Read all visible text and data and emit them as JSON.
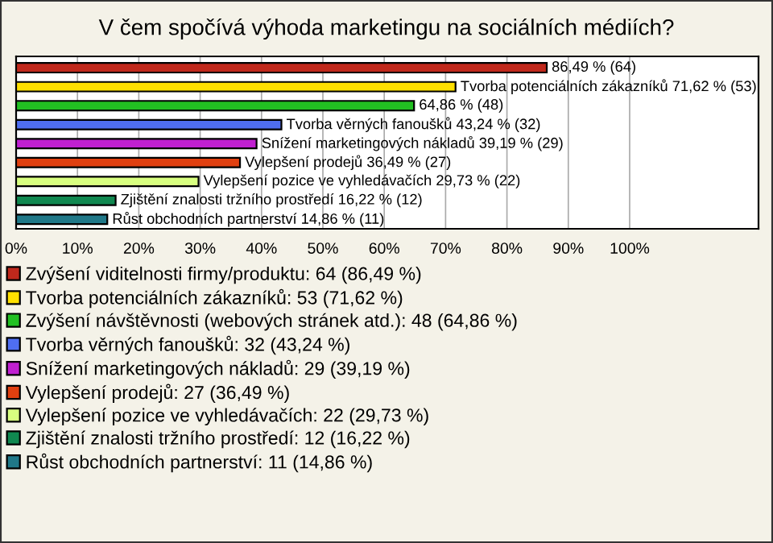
{
  "chart_data": {
    "type": "bar",
    "orientation": "horizontal",
    "stacked": true,
    "title": "V čem spočívá výhoda marketingu na sociálních médiích?",
    "categories": [
      null,
      null,
      null,
      null,
      null,
      null,
      null,
      null,
      null
    ],
    "series": [
      {
        "name": "Zvýšení viditelnosti firmy/produktu: 64 (86,49 %)",
        "color": "#c0281c",
        "values": [
          86.49,
          null,
          null,
          null,
          null,
          null,
          null,
          null,
          null
        ],
        "value_labels": [
          "86,49 % (64)",
          null,
          null,
          null,
          null,
          null,
          null,
          null,
          null
        ]
      },
      {
        "name": "Tvorba potenciálních zákazníků: 53 (71,62 %)",
        "color": "#ffe000",
        "values": [
          null,
          71.62,
          null,
          null,
          null,
          null,
          null,
          null,
          null
        ],
        "value_labels": [
          null,
          "Tvorba potenciálních zákazníků 71,62 % (53)",
          null,
          null,
          null,
          null,
          null,
          null,
          null
        ]
      },
      {
        "name": "Zvýšení návštěvnosti (webových stránek atd.): 48 (64,86 %)",
        "color": "#22c022",
        "values": [
          null,
          null,
          64.86,
          null,
          null,
          null,
          null,
          null,
          null
        ],
        "value_labels": [
          null,
          null,
          "64,86 % (48)",
          null,
          null,
          null,
          null,
          null,
          null
        ]
      },
      {
        "name": "Tvorba věrných fanoušků: 32 (43,24 %)",
        "color": "#4f6ef0",
        "values": [
          null,
          null,
          null,
          43.24,
          null,
          null,
          null,
          null,
          null
        ],
        "value_labels": [
          null,
          null,
          null,
          "Tvorba věrných fanoušků 43,24 % (32)",
          null,
          null,
          null,
          null,
          null
        ]
      },
      {
        "name": "Snížení marketingových nákladů: 29 (39,19 %)",
        "color": "#c020d0",
        "values": [
          null,
          null,
          null,
          null,
          39.19,
          null,
          null,
          null,
          null
        ],
        "value_labels": [
          null,
          null,
          null,
          null,
          "Snížení marketingových nákladů 39,19 % (29)",
          null,
          null,
          null,
          null
        ]
      },
      {
        "name": "Vylepšení prodejů: 27 (36,49 %)",
        "color": "#e04010",
        "values": [
          null,
          null,
          null,
          null,
          null,
          36.49,
          null,
          null,
          null
        ],
        "value_labels": [
          null,
          null,
          null,
          null,
          null,
          "Vylepšení prodejů 36,49 % (27)",
          null,
          null,
          null
        ]
      },
      {
        "name": "Vylepšení pozice ve vyhledávačích: 22 (29,73 %)",
        "color": "#d8ff80",
        "values": [
          null,
          null,
          null,
          null,
          null,
          null,
          29.73,
          null,
          null
        ],
        "value_labels": [
          null,
          null,
          null,
          null,
          null,
          null,
          "Vylepšení pozice ve vyhledávačích 29,73 % (22)",
          null,
          null
        ]
      },
      {
        "name": "Zjištění znalosti tržního prostředí: 12 (16,22 %)",
        "color": "#108850",
        "values": [
          null,
          null,
          null,
          null,
          null,
          null,
          null,
          16.22,
          null
        ],
        "value_labels": [
          null,
          null,
          null,
          null,
          null,
          null,
          null,
          "Zjištění znalosti tržního prostředí 16,22 % (12)",
          null
        ]
      },
      {
        "name": "Růst obchodních partnerství: 11 (14,86 %)",
        "color": "#207888",
        "values": [
          null,
          null,
          null,
          null,
          null,
          null,
          null,
          null,
          14.86
        ],
        "value_labels": [
          null,
          null,
          null,
          null,
          null,
          null,
          null,
          null,
          "Růst obchodních partnerství 14,86 % (11)"
        ]
      }
    ],
    "xlim": [
      0,
      121
    ],
    "xticks": [
      {
        "value": 0,
        "label": "0%"
      },
      {
        "value": 10,
        "label": "10%"
      },
      {
        "value": 20,
        "label": "20%"
      },
      {
        "value": 30,
        "label": "30%"
      },
      {
        "value": 40,
        "label": "40%"
      },
      {
        "value": 50,
        "label": "50%"
      },
      {
        "value": 60,
        "label": "60%"
      },
      {
        "value": 70,
        "label": "70%"
      },
      {
        "value": 80,
        "label": "80%"
      },
      {
        "value": 90,
        "label": "90%"
      },
      {
        "value": 100,
        "label": "100%"
      }
    ],
    "grid": "x",
    "legend": "bottom"
  }
}
